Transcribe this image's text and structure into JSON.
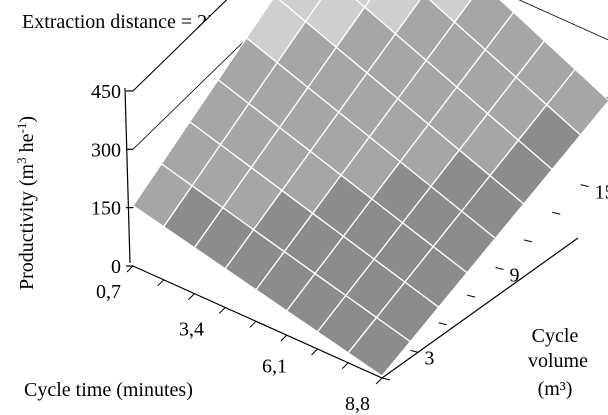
{
  "chart_data": {
    "type": "surface",
    "title": "Extraction distance = 250 m",
    "zlabel_prefix": "Productivity (m",
    "zlabel_sup1": "3",
    "zlabel_mid": " he",
    "zlabel_sup2": "-1",
    "zlabel_suffix": ")",
    "xlabel": "Cycle time (minutes)",
    "ylabel_lines": [
      "Cycle",
      "volume",
      "(m³)"
    ],
    "x_ticks": [
      "0,7",
      "3,4",
      "6,1",
      "8,8"
    ],
    "y_ticks": [
      "3",
      "9",
      "15"
    ],
    "z_ticks": [
      "0",
      "150",
      "300",
      "450"
    ],
    "x_range": [
      0.7,
      8.8
    ],
    "y_range": [
      1,
      17
    ],
    "zlim": [
      0,
      450
    ],
    "grid": {
      "x": [
        0.7,
        1.7,
        2.7,
        3.7,
        4.7,
        5.7,
        6.7,
        7.7,
        8.8
      ],
      "y": [
        1,
        3,
        5,
        7,
        9,
        11,
        13,
        15,
        17
      ]
    },
    "surface_corners": [
      {
        "cycle_time_min": 0.7,
        "cycle_volume_m3": 1,
        "productivity": 155
      },
      {
        "cycle_time_min": 0.7,
        "cycle_volume_m3": 17,
        "productivity": 450
      },
      {
        "cycle_time_min": 8.8,
        "cycle_volume_m3": 17,
        "productivity": 145
      },
      {
        "cycle_time_min": 8.8,
        "cycle_volume_m3": 1,
        "productivity": 5
      }
    ],
    "colors": {
      "band_above_300": "#cfcfcf",
      "band_150_300": "#a6a6a6",
      "band_below_150": "#8c8c8c",
      "mesh": "#ffffff"
    }
  }
}
